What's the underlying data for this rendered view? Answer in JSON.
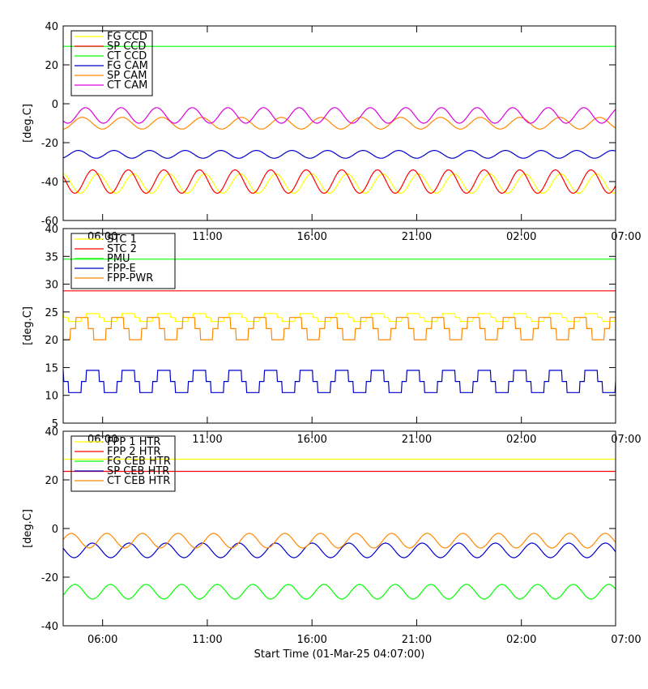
{
  "footer": {
    "xlabel": "Start Time (01-Mar-25 04:07:00)"
  },
  "chart_data": [
    {
      "type": "line",
      "panel": "top",
      "ylabel": "[deg.C]",
      "ylim": [
        -60,
        40
      ],
      "yticks": [
        40,
        20,
        0,
        -20,
        -40,
        -60
      ],
      "xticks": [],
      "legend_position": "top-left",
      "series": [
        {
          "name": "FG CCD",
          "color": "#ffff00",
          "waveform": "sine",
          "base": -41,
          "amp": 5,
          "period_h": 1.7,
          "phase": 0.85
        },
        {
          "name": "SP CCD",
          "color": "#ff0000",
          "waveform": "sine",
          "base": -40,
          "amp": 6,
          "period_h": 1.7,
          "phase": 0
        },
        {
          "name": "CT CCD",
          "color": "#00ff00",
          "waveform": "flat",
          "base": 29.5,
          "amp": 0,
          "period_h": 1.7,
          "phase": 0
        },
        {
          "name": "FG CAM",
          "color": "#0000cc",
          "waveform": "sine",
          "base": -26,
          "amp": 2,
          "period_h": 1.7,
          "phase": 0.4
        },
        {
          "name": "SP CAM",
          "color": "#ff8800",
          "waveform": "sine",
          "base": -10,
          "amp": 3,
          "period_h": 1.9,
          "phase": 0.6
        },
        {
          "name": "CT CAM",
          "color": "#dd00dd",
          "waveform": "sine",
          "base": -6,
          "amp": 4,
          "period_h": 1.7,
          "phase": 0.2
        }
      ]
    },
    {
      "type": "line",
      "panel": "middle",
      "ylabel": "[deg.C]",
      "ylim": [
        5,
        40
      ],
      "yticks": [
        40,
        35,
        30,
        25,
        20,
        15,
        10,
        5
      ],
      "xticks": [
        "06:00",
        "11:00",
        "16:00",
        "21:00",
        "02:00",
        "07:00"
      ],
      "legend_position": "top-left",
      "series": [
        {
          "name": "STC 1",
          "color": "#ffff00",
          "waveform": "step",
          "base": 24,
          "amp": 0.7,
          "period_h": 1.7,
          "phase": 0
        },
        {
          "name": "STC 2",
          "color": "#ff0000",
          "waveform": "flat",
          "base": 28.8,
          "amp": 0,
          "period_h": 1.7,
          "phase": 0
        },
        {
          "name": "PMU",
          "color": "#00ff00",
          "waveform": "flat",
          "base": 34.5,
          "amp": 0,
          "period_h": 1.7,
          "phase": 0
        },
        {
          "name": "FPP-E",
          "color": "#0000cc",
          "waveform": "step",
          "base": 12.5,
          "amp": 2,
          "period_h": 1.7,
          "phase": 0
        },
        {
          "name": "FPP-PWR",
          "color": "#ff8800",
          "waveform": "step",
          "base": 22,
          "amp": 2,
          "period_h": 1.7,
          "phase": 0.3
        }
      ]
    },
    {
      "type": "line",
      "panel": "bottom",
      "ylabel": "[deg.C]",
      "ylim": [
        -40,
        40
      ],
      "yticks": [
        40,
        20,
        0,
        -20,
        -40
      ],
      "xticks": [
        "06:00",
        "11:00",
        "16:00",
        "21:00",
        "02:00",
        "07:00"
      ],
      "legend_position": "top-left",
      "series": [
        {
          "name": "FPP 1 HTR",
          "color": "#ffff00",
          "waveform": "flat",
          "base": 28.5,
          "amp": 0,
          "period_h": 1.7,
          "phase": 0
        },
        {
          "name": "FPP 2 HTR",
          "color": "#ff0000",
          "waveform": "flat",
          "base": 23.5,
          "amp": 0,
          "period_h": 1.7,
          "phase": 0
        },
        {
          "name": "FG CEB HTR",
          "color": "#00ff00",
          "waveform": "sine",
          "base": -26,
          "amp": 3,
          "period_h": 1.7,
          "phase": 0.5
        },
        {
          "name": "SP CEB HTR",
          "color": "#0000cc",
          "waveform": "sine",
          "base": -9,
          "amp": 3,
          "period_h": 1.75,
          "phase": 0.1
        },
        {
          "name": "CT CEB HTR",
          "color": "#ff8800",
          "waveform": "sine",
          "base": -5,
          "amp": 3,
          "period_h": 1.7,
          "phase": 0.6
        }
      ]
    }
  ]
}
